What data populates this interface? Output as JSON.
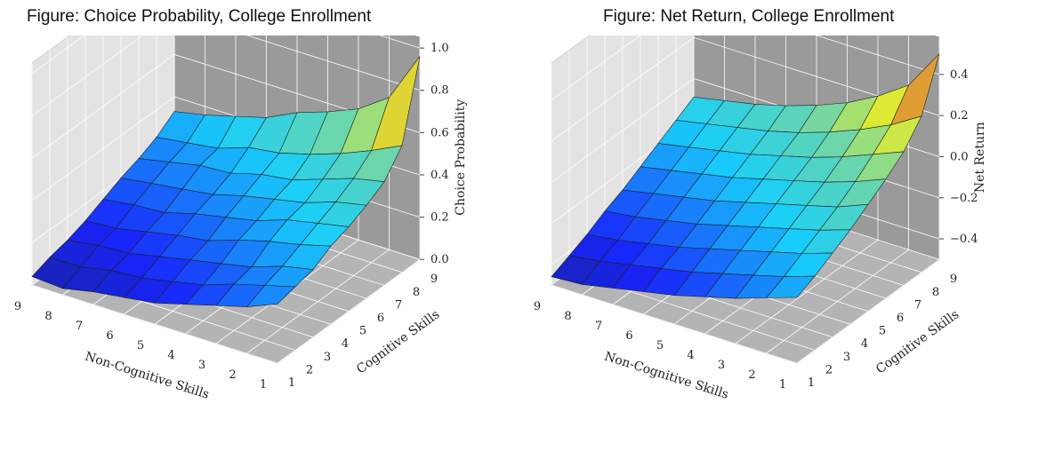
{
  "chart_data": [
    {
      "type": "surface3d",
      "title": "Figure:  Choice Probability, College Enrollment",
      "xlabel": "Non-Cognitive Skills",
      "ylabel": "Cognitive Skills",
      "zlabel": "Choice Probability",
      "x_ticks": [
        "9",
        "8",
        "7",
        "6",
        "5",
        "4",
        "3",
        "2",
        "1"
      ],
      "y_ticks": [
        "1",
        "2",
        "3",
        "4",
        "5",
        "6",
        "7",
        "8",
        "9"
      ],
      "z_ticks": [
        "0.0",
        "0.2",
        "0.4",
        "0.6",
        "0.8",
        "1.0"
      ],
      "zlim": [
        0,
        1.05
      ],
      "colormap": "jet",
      "grid": true,
      "z": [
        [
          0.04,
          0.03,
          0.06,
          0.08,
          0.1,
          0.14,
          0.18,
          0.22,
          0.28
        ],
        [
          0.07,
          0.07,
          0.1,
          0.11,
          0.14,
          0.17,
          0.22,
          0.26,
          0.3
        ],
        [
          0.09,
          0.11,
          0.12,
          0.15,
          0.18,
          0.21,
          0.24,
          0.29,
          0.32
        ],
        [
          0.12,
          0.13,
          0.16,
          0.19,
          0.21,
          0.26,
          0.3,
          0.33,
          0.37
        ],
        [
          0.16,
          0.18,
          0.19,
          0.23,
          0.26,
          0.29,
          0.34,
          0.37,
          0.4
        ],
        [
          0.2,
          0.22,
          0.24,
          0.26,
          0.3,
          0.33,
          0.36,
          0.41,
          0.44
        ],
        [
          0.23,
          0.26,
          0.29,
          0.3,
          0.34,
          0.36,
          0.41,
          0.46,
          0.49
        ],
        [
          0.27,
          0.29,
          0.31,
          0.36,
          0.38,
          0.42,
          0.47,
          0.53,
          0.6
        ],
        [
          0.33,
          0.36,
          0.4,
          0.44,
          0.51,
          0.56,
          0.62,
          0.72,
          0.96
        ]
      ]
    },
    {
      "type": "surface3d",
      "title": "Figure:  Net Return, College Enrollment",
      "xlabel": "Non-Cognitive Skills",
      "ylabel": "Cognitive Skills",
      "zlabel": "Net Return",
      "x_ticks": [
        "9",
        "8",
        "7",
        "6",
        "5",
        "4",
        "3",
        "2",
        "1"
      ],
      "y_ticks": [
        "1",
        "2",
        "3",
        "4",
        "5",
        "6",
        "7",
        "8",
        "9"
      ],
      "z_ticks": [
        "−0.4",
        "−0.2",
        "0.0",
        "0.2",
        "0.4"
      ],
      "zlim": [
        -0.5,
        0.58
      ],
      "colormap": "jet",
      "grid": true,
      "z": [
        [
          -0.46,
          -0.45,
          -0.42,
          -0.39,
          -0.36,
          -0.32,
          -0.28,
          -0.23,
          -0.18
        ],
        [
          -0.42,
          -0.4,
          -0.37,
          -0.34,
          -0.31,
          -0.27,
          -0.23,
          -0.19,
          -0.14
        ],
        [
          -0.38,
          -0.36,
          -0.33,
          -0.3,
          -0.26,
          -0.22,
          -0.18,
          -0.14,
          -0.09
        ],
        [
          -0.33,
          -0.31,
          -0.28,
          -0.25,
          -0.21,
          -0.17,
          -0.13,
          -0.09,
          -0.04
        ],
        [
          -0.29,
          -0.26,
          -0.23,
          -0.2,
          -0.16,
          -0.12,
          -0.08,
          -0.04,
          0.02
        ],
        [
          -0.24,
          -0.21,
          -0.18,
          -0.15,
          -0.11,
          -0.07,
          -0.03,
          0.02,
          0.08
        ],
        [
          -0.19,
          -0.16,
          -0.13,
          -0.1,
          -0.06,
          -0.02,
          0.03,
          0.09,
          0.15
        ],
        [
          -0.14,
          -0.11,
          -0.08,
          -0.05,
          -0.01,
          0.04,
          0.1,
          0.17,
          0.26
        ],
        [
          -0.09,
          -0.06,
          -0.03,
          0.01,
          0.06,
          0.12,
          0.2,
          0.3,
          0.5
        ]
      ]
    }
  ]
}
